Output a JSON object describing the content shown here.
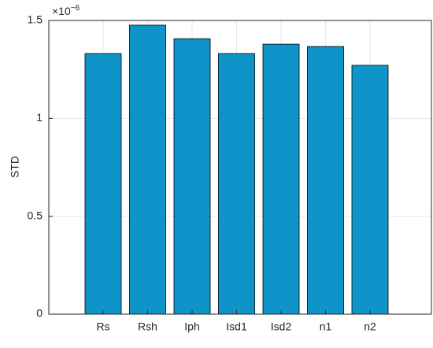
{
  "chart_data": {
    "type": "bar",
    "y_label": "STD",
    "y_multiplier": {
      "base": "×10",
      "exponent": "−6"
    },
    "categories": [
      "Rs",
      "Rsh",
      "Iph",
      "Isd1",
      "Isd2",
      "n1",
      "n2"
    ],
    "values": [
      1.331,
      1.476,
      1.407,
      1.331,
      1.379,
      1.367,
      1.271
    ],
    "color": "#0e94c8",
    "ylim": [
      0,
      1.5
    ],
    "yticks": [
      0,
      0.5,
      1,
      1.5
    ],
    "grid": true
  }
}
